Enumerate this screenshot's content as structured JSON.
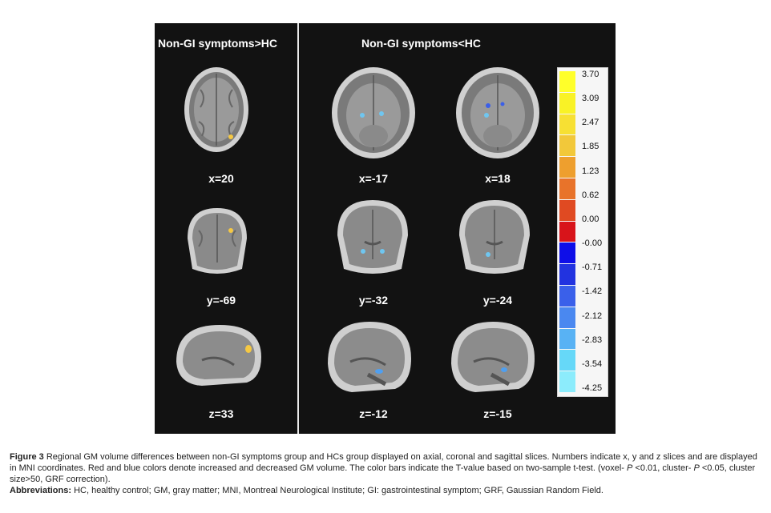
{
  "panels": {
    "left_title": "Non-GI symptoms>HC",
    "right_title": "Non-GI symptoms<HC"
  },
  "coords": {
    "left": [
      "x=20",
      "y=-69",
      "z=33"
    ],
    "mid": [
      "x=-17",
      "y=-32",
      "z=-12"
    ],
    "right": [
      "x=18",
      "y=-24",
      "z=-15"
    ]
  },
  "colorbar": {
    "ticks": [
      "3.70",
      "3.09",
      "2.47",
      "1.85",
      "1.23",
      "0.62",
      "0.00",
      "-0.00",
      "-0.71",
      "-1.42",
      "-2.12",
      "-2.83",
      "-3.54",
      "-4.25"
    ],
    "colors": [
      "#ffff2a",
      "#f9f226",
      "#f7e033",
      "#f2c83a",
      "#ee9f2e",
      "#e8732a",
      "#e04a22",
      "#d8141a",
      "#0e0ee8",
      "#2233e0",
      "#3a60ea",
      "#4a88f0",
      "#58b2f4",
      "#66d8f8",
      "#8cecfc"
    ]
  },
  "caption": {
    "fig_label": "Figure 3",
    "fig_text": " Regional GM volume differences between non-GI symptoms group and HCs group displayed on axial, coronal and sagittal slices. Numbers indicate x, y and z slices and are displayed in MNI coordinates. Red and blue colors denote increased and decreased GM volume. The color bars indicate the T-value based on two-sample t-test. (voxel- ",
    "p1_italic": "P",
    "p1_rest": " <0.01, cluster- ",
    "p2_italic": "P",
    "p2_rest": " <0.05, cluster size>50, GRF correction).",
    "abbr_label": "Abbreviations:",
    "abbr_text": " HC, healthy control; GM, gray matter; MNI, Montreal Neurological Institute; GI:  gastrointestinal symptom; GRF, Gaussian Random Field."
  }
}
